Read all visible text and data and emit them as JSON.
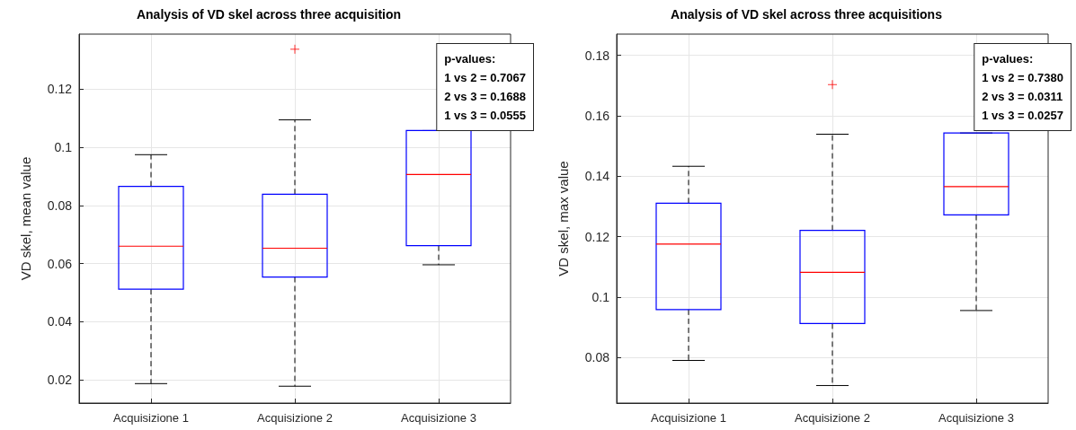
{
  "chart_data": [
    {
      "type": "box",
      "title": "Analysis of VD skel across three acquisition",
      "ylabel": "VD skel, mean value",
      "categories": [
        "Acquisizione 1",
        "Acquisizione 2",
        "Acquisizione 3"
      ],
      "ylim": [
        0.012,
        0.139
      ],
      "yticks": [
        0.02,
        0.04,
        0.06,
        0.08,
        0.1,
        0.12
      ],
      "grid": true,
      "color": "#0000ff",
      "boxes": [
        {
          "low": 0.0187,
          "q1": 0.0512,
          "median": 0.066,
          "q3": 0.0866,
          "high": 0.0975
        },
        {
          "low": 0.0178,
          "q1": 0.0554,
          "median": 0.0653,
          "q3": 0.0839,
          "high": 0.1095,
          "outliers": [
            0.1338
          ]
        },
        {
          "low": 0.0596,
          "q1": 0.0662,
          "median": 0.0907,
          "q3": 0.1058,
          "high": 0.1058
        }
      ],
      "annotations": [
        "p-values:\n1 vs 2 = 0.7067\n2 vs 3 = 0.1688\n1 vs 3 = 0.0555"
      ]
    },
    {
      "type": "box",
      "title": "Analysis of VD skel across three acquisitions",
      "ylabel": "VD skel, max value",
      "categories": [
        "Acquisizione 1",
        "Acquisizione 2",
        "Acquisizione 3"
      ],
      "ylim": [
        0.065,
        0.187
      ],
      "yticks": [
        0.08,
        0.1,
        0.12,
        0.14,
        0.16,
        0.18
      ],
      "grid": true,
      "color": "#0000ff",
      "boxes": [
        {
          "low": 0.0791,
          "q1": 0.0959,
          "median": 0.1176,
          "q3": 0.1311,
          "high": 0.1433
        },
        {
          "low": 0.0708,
          "q1": 0.0913,
          "median": 0.1082,
          "q3": 0.1221,
          "high": 0.1539,
          "outliers": [
            0.1703
          ]
        },
        {
          "low": 0.0956,
          "q1": 0.1272,
          "median": 0.1366,
          "q3": 0.1543,
          "high": 0.1543
        }
      ],
      "annotations": [
        "p-values:\n1 vs 2 = 0.7380\n2 vs 3 = 0.0311\n1 vs 3 = 0.0257"
      ]
    }
  ]
}
